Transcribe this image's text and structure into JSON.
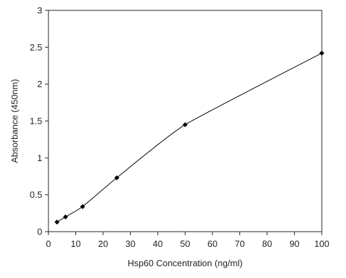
{
  "chart_data": {
    "type": "line",
    "title": "",
    "xlabel": "Hsp60 Concentration (ng/ml)",
    "ylabel": "Absorbance (450nm)",
    "xlim": [
      0,
      100
    ],
    "ylim": [
      0,
      3
    ],
    "x_ticks": [
      0,
      10,
      20,
      30,
      40,
      50,
      60,
      70,
      80,
      90,
      100
    ],
    "y_ticks": [
      0,
      0.5,
      1,
      1.5,
      2,
      2.5,
      3
    ],
    "x_tick_labels": [
      "0",
      "10",
      "20",
      "30",
      "40",
      "50",
      "60",
      "70",
      "80",
      "90",
      "100"
    ],
    "y_tick_labels": [
      "0",
      "0.5",
      "1",
      "1.5",
      "2",
      "2.5",
      "3"
    ],
    "grid": false,
    "series": [
      {
        "x": [
          3.125,
          6.25,
          12.5,
          25,
          50,
          100
        ],
        "y": [
          0.13,
          0.2,
          0.34,
          0.73,
          1.45,
          2.42
        ],
        "marker": "diamond",
        "color": "#000000"
      }
    ]
  }
}
